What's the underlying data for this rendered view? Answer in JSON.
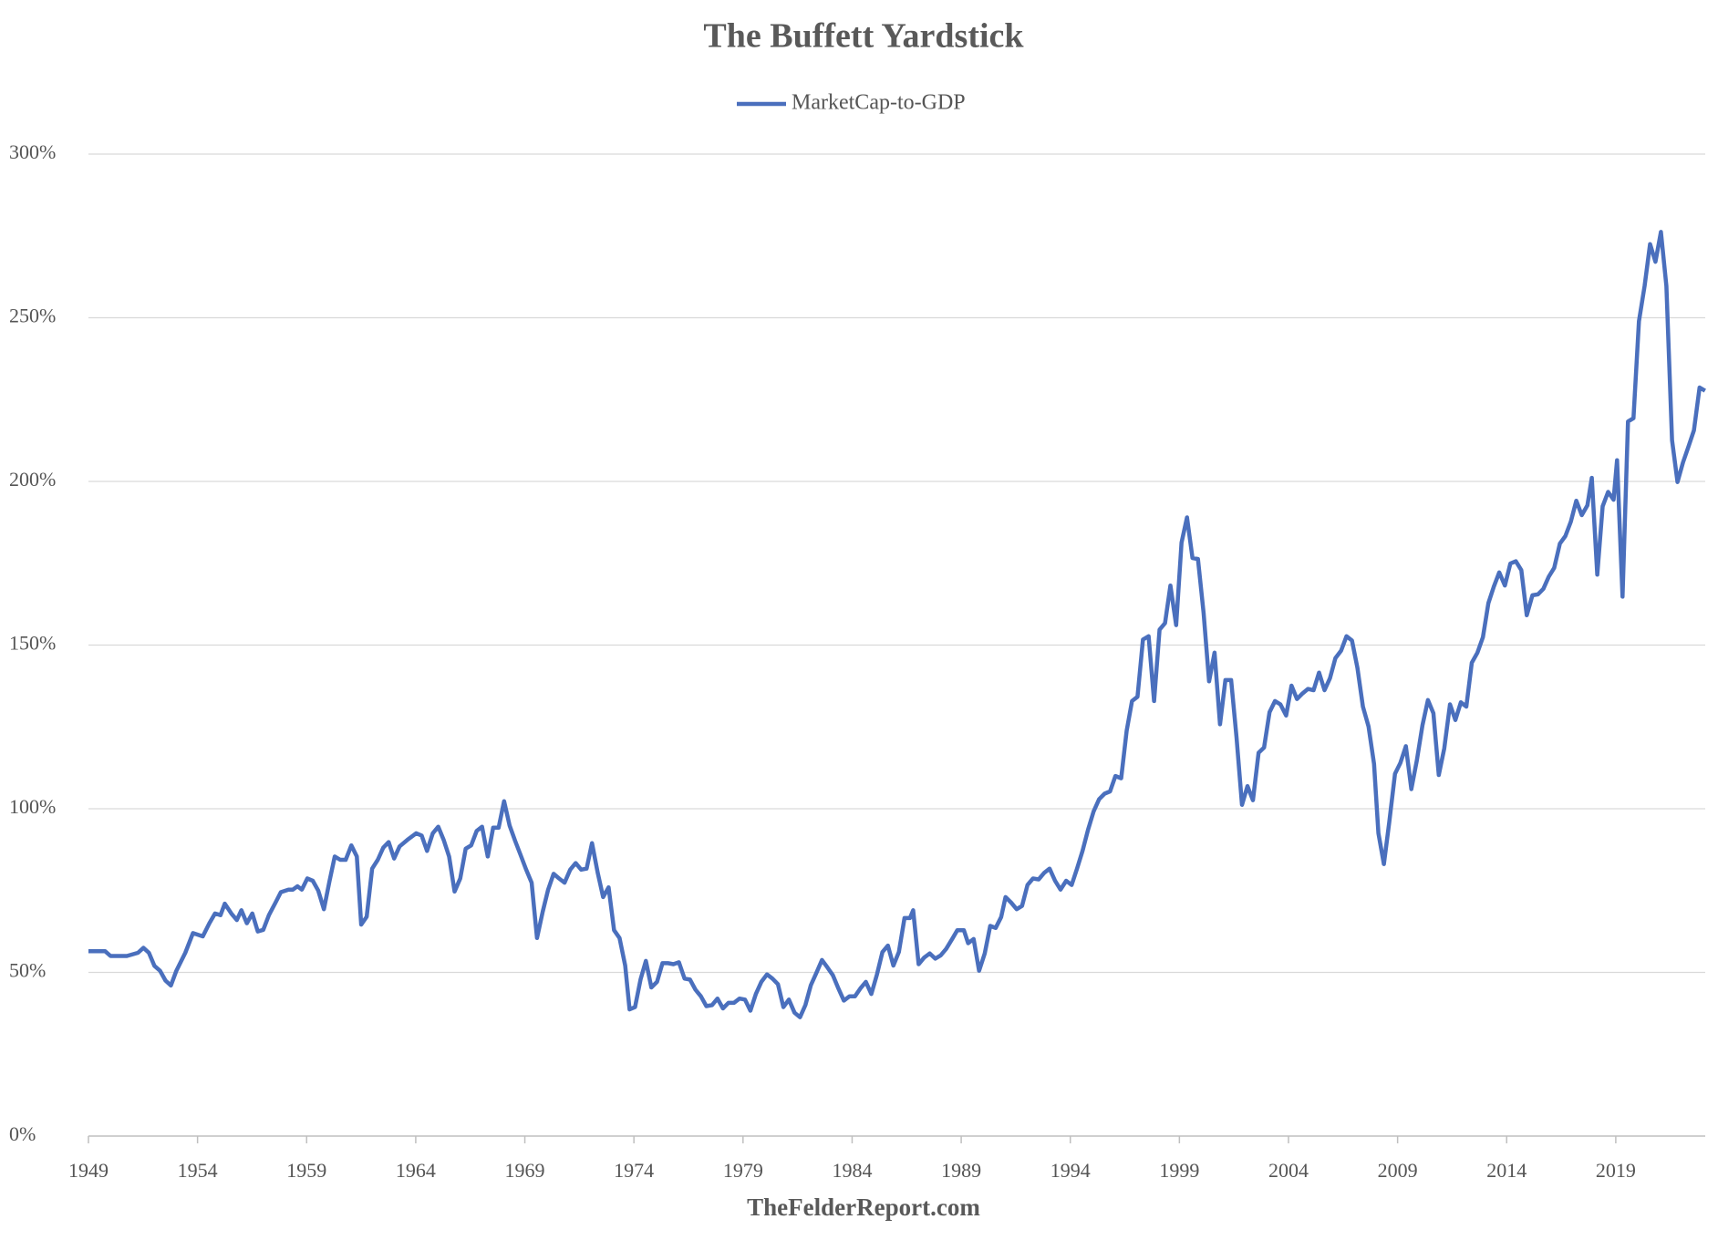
{
  "chart_data": {
    "type": "line",
    "title": "The Buffett Yardstick",
    "source": "TheFelderReport.com",
    "legend": "top",
    "grid": true,
    "xlim": [
      1949,
      2023.1
    ],
    "xticks": [
      1949,
      1954,
      1959,
      1964,
      1969,
      1974,
      1979,
      1984,
      1989,
      1994,
      1999,
      2004,
      2009,
      2014,
      2019
    ],
    "ylim": [
      0,
      300
    ],
    "yticks": [
      {
        "value": 0,
        "label": "0%"
      },
      {
        "value": 50,
        "label": "50%"
      },
      {
        "value": 100,
        "label": "100%"
      },
      {
        "value": 150,
        "label": "150%"
      },
      {
        "value": 200,
        "label": "200%"
      },
      {
        "value": 250,
        "label": "250%"
      },
      {
        "value": 300,
        "label": "300%"
      }
    ],
    "x": [
      1949,
      1949.76,
      1950.01,
      1950.76,
      1951.27,
      1951.52,
      1951.77,
      1952.02,
      1952.28,
      1952.53,
      1952.78,
      1953.03,
      1953.44,
      1953.79,
      1954.24,
      1954.54,
      1954.8,
      1955.05,
      1955.25,
      1955.55,
      1955.8,
      1956.01,
      1956.26,
      1956.51,
      1956.76,
      1957.01,
      1957.27,
      1957.57,
      1957.82,
      1958.17,
      1958.37,
      1958.58,
      1958.78,
      1959.03,
      1959.28,
      1959.53,
      1959.79,
      1960.04,
      1960.29,
      1960.54,
      1960.79,
      1961.05,
      1961.3,
      1961.5,
      1961.75,
      1962,
      1962.26,
      1962.51,
      1962.76,
      1963.01,
      1963.26,
      1963.62,
      1964.02,
      1964.27,
      1964.52,
      1964.78,
      1965.03,
      1965.28,
      1965.53,
      1965.78,
      1966.04,
      1966.29,
      1966.54,
      1966.79,
      1967.04,
      1967.3,
      1967.55,
      1967.8,
      1968.05,
      1968.3,
      1968.56,
      1968.81,
      1969.06,
      1969.31,
      1969.56,
      1969.82,
      1970.07,
      1970.32,
      1970.57,
      1970.82,
      1971.08,
      1971.33,
      1971.58,
      1971.83,
      1972.08,
      1972.34,
      1972.59,
      1972.84,
      1973.09,
      1973.34,
      1973.6,
      1973.8,
      1974.05,
      1974.3,
      1974.55,
      1974.8,
      1975.06,
      1975.31,
      1975.56,
      1975.81,
      1976.06,
      1976.32,
      1976.57,
      1976.82,
      1977.07,
      1977.32,
      1977.58,
      1977.83,
      1978.08,
      1978.33,
      1978.58,
      1978.84,
      1979.09,
      1979.34,
      1979.59,
      1979.84,
      1980.1,
      1980.35,
      1980.6,
      1980.85,
      1981.1,
      1981.36,
      1981.61,
      1981.86,
      1982.11,
      1982.36,
      1982.62,
      1982.87,
      1983.12,
      1983.37,
      1983.62,
      1983.88,
      1984.13,
      1984.38,
      1984.63,
      1984.88,
      1985.14,
      1985.39,
      1985.64,
      1985.89,
      1986.14,
      1986.4,
      1986.65,
      1986.8,
      1987.05,
      1987.3,
      1987.56,
      1987.81,
      1988.06,
      1988.31,
      1988.61,
      1988.82,
      1989.12,
      1989.32,
      1989.57,
      1989.82,
      1990.08,
      1990.33,
      1990.58,
      1990.83,
      1991.03,
      1991.29,
      1991.54,
      1991.79,
      1992.04,
      1992.29,
      1992.55,
      1992.8,
      1993.05,
      1993.3,
      1993.55,
      1993.81,
      1994.06,
      1994.31,
      1994.56,
      1994.81,
      1995.07,
      1995.32,
      1995.57,
      1995.82,
      1996.07,
      1996.33,
      1996.58,
      1996.83,
      1997.08,
      1997.33,
      1997.59,
      1997.84,
      1998.09,
      1998.34,
      1998.59,
      1998.85,
      1999.1,
      1999.35,
      1999.6,
      1999.85,
      2000.11,
      2000.36,
      2000.61,
      2000.86,
      2001.11,
      2001.37,
      2001.62,
      2001.87,
      2002.12,
      2002.37,
      2002.63,
      2002.88,
      2003.13,
      2003.38,
      2003.63,
      2003.89,
      2004.14,
      2004.39,
      2004.64,
      2004.89,
      2005.15,
      2005.4,
      2005.65,
      2005.9,
      2006.15,
      2006.41,
      2006.66,
      2006.91,
      2007.16,
      2007.41,
      2007.67,
      2007.92,
      2008.12,
      2008.37,
      2008.62,
      2008.88,
      2009.13,
      2009.38,
      2009.63,
      2009.88,
      2010.14,
      2010.39,
      2010.64,
      2010.89,
      2011.14,
      2011.4,
      2011.65,
      2011.9,
      2012.15,
      2012.4,
      2012.66,
      2012.91,
      2013.16,
      2013.41,
      2013.66,
      2013.92,
      2014.17,
      2014.42,
      2014.67,
      2014.92,
      2015.18,
      2015.43,
      2015.68,
      2015.93,
      2016.18,
      2016.44,
      2016.69,
      2016.94,
      2017.19,
      2017.44,
      2017.7,
      2017.9,
      2018.15,
      2018.4,
      2018.65,
      2018.9,
      2019.06,
      2019.31,
      2019.56,
      2019.81,
      2020.06,
      2020.32,
      2020.57,
      2020.82,
      2021.07,
      2021.32,
      2021.58,
      2021.83,
      2022.08,
      2022.33,
      2022.58,
      2022.84,
      2023.09
    ],
    "series": [
      {
        "name": "MarketCap-to-GDP",
        "color": "#4a6fbd",
        "values": [
          56.5,
          56.5,
          55,
          55,
          56,
          57.5,
          56,
          52,
          50.5,
          47.5,
          46,
          50.5,
          56,
          62,
          61,
          65,
          68,
          67.5,
          71,
          68,
          66,
          69,
          65,
          68,
          62.5,
          63,
          67.5,
          71.3,
          74.5,
          75.3,
          75.3,
          76.3,
          75.3,
          78.7,
          78,
          75,
          69.3,
          77.7,
          85.4,
          84.4,
          84.4,
          88.8,
          85.4,
          64.6,
          67,
          81.7,
          84.4,
          88.1,
          89.8,
          84.8,
          88.5,
          90.5,
          92.5,
          91.8,
          87.1,
          92.5,
          94.5,
          90.5,
          85.4,
          74.7,
          78.7,
          87.8,
          88.8,
          93.2,
          94.5,
          85.4,
          94.2,
          94.2,
          102.3,
          94.9,
          90.1,
          85.8,
          81.4,
          77.4,
          60.5,
          68.6,
          75.3,
          80.1,
          78.7,
          77.4,
          81.4,
          83.4,
          81.4,
          81.7,
          89.5,
          80.4,
          73,
          76,
          62.9,
          60.5,
          52.1,
          38.7,
          39.4,
          47.8,
          53.5,
          45.4,
          47.1,
          52.8,
          52.8,
          52.5,
          53.1,
          48.1,
          47.8,
          44.7,
          42.7,
          39.7,
          40,
          42,
          39,
          40.7,
          40.7,
          42,
          41.7,
          38.3,
          43.4,
          47.1,
          49.4,
          48.1,
          46.4,
          39.4,
          41.7,
          37.7,
          36.3,
          40,
          46.1,
          49.8,
          53.8,
          51.5,
          49.1,
          45.1,
          41.4,
          42.7,
          42.7,
          45.1,
          47.1,
          43.4,
          49.4,
          56.2,
          58.2,
          52.1,
          56.2,
          66.6,
          66.6,
          69,
          52.5,
          54.5,
          55.8,
          54.2,
          55.2,
          57.2,
          60.5,
          62.9,
          62.9,
          58.9,
          60.2,
          50.5,
          55.8,
          64.2,
          63.6,
          66.9,
          73,
          71.3,
          69.3,
          70.3,
          76.7,
          78.7,
          78.4,
          80.4,
          81.7,
          78,
          75.3,
          78,
          76.7,
          81.7,
          87.1,
          93.5,
          99.2,
          102.9,
          104.6,
          105.3,
          110,
          109.3,
          123.8,
          132.9,
          134.2,
          151.7,
          152.7,
          132.9,
          154.7,
          156.7,
          168.2,
          156.1,
          181.3,
          189,
          176.6,
          176.3,
          159.8,
          138.9,
          147.7,
          125.8,
          139.3,
          139.3,
          121.8,
          101.2,
          106.9,
          102.6,
          117.1,
          118.7,
          129.5,
          132.9,
          131.9,
          128.5,
          137.6,
          133.5,
          135.2,
          136.6,
          136.2,
          141.6,
          136.2,
          139.9,
          146,
          148.3,
          152.7,
          151.4,
          143,
          131.2,
          125.1,
          113.7,
          92.5,
          83.1,
          95.9,
          110.7,
          114,
          119.1,
          106,
          114.7,
          125.5,
          133.2,
          129.2,
          110.3,
          118.4,
          131.9,
          127.1,
          132.5,
          131.2,
          144.6,
          147.7,
          152.4,
          162.8,
          167.8,
          172.2,
          168.2,
          174.9,
          175.6,
          172.9,
          159.1,
          165.2,
          165.5,
          167.2,
          170.9,
          173.6,
          181,
          183.3,
          187.7,
          194.1,
          189.7,
          192.7,
          201.1,
          171.5,
          192.4,
          196.8,
          194.4,
          206.5,
          164.8,
          218.3,
          219.3,
          248.9,
          259.7,
          272.5,
          267.1,
          276.2,
          259.7,
          212.6,
          199.8,
          205.8,
          210.6,
          215.6,
          228.7,
          227.7
        ]
      }
    ]
  }
}
